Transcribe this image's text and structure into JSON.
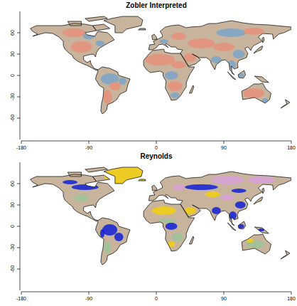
{
  "chart_data": [
    {
      "type": "map",
      "title": "Zobler Interpreted",
      "xlim": [
        -180,
        180
      ],
      "ylim": [
        -90,
        90
      ],
      "xticks": [
        -180,
        -90,
        0,
        90,
        180
      ],
      "yticks": [
        -60,
        -30,
        0,
        30,
        60
      ]
    },
    {
      "type": "map",
      "title": "Reynolds",
      "xlim": [
        -180,
        180
      ],
      "ylim": [
        -90,
        90
      ],
      "xticks": [
        -180,
        -90,
        0,
        90,
        180
      ],
      "yticks": [
        -60,
        -30,
        0,
        30,
        60
      ]
    }
  ]
}
